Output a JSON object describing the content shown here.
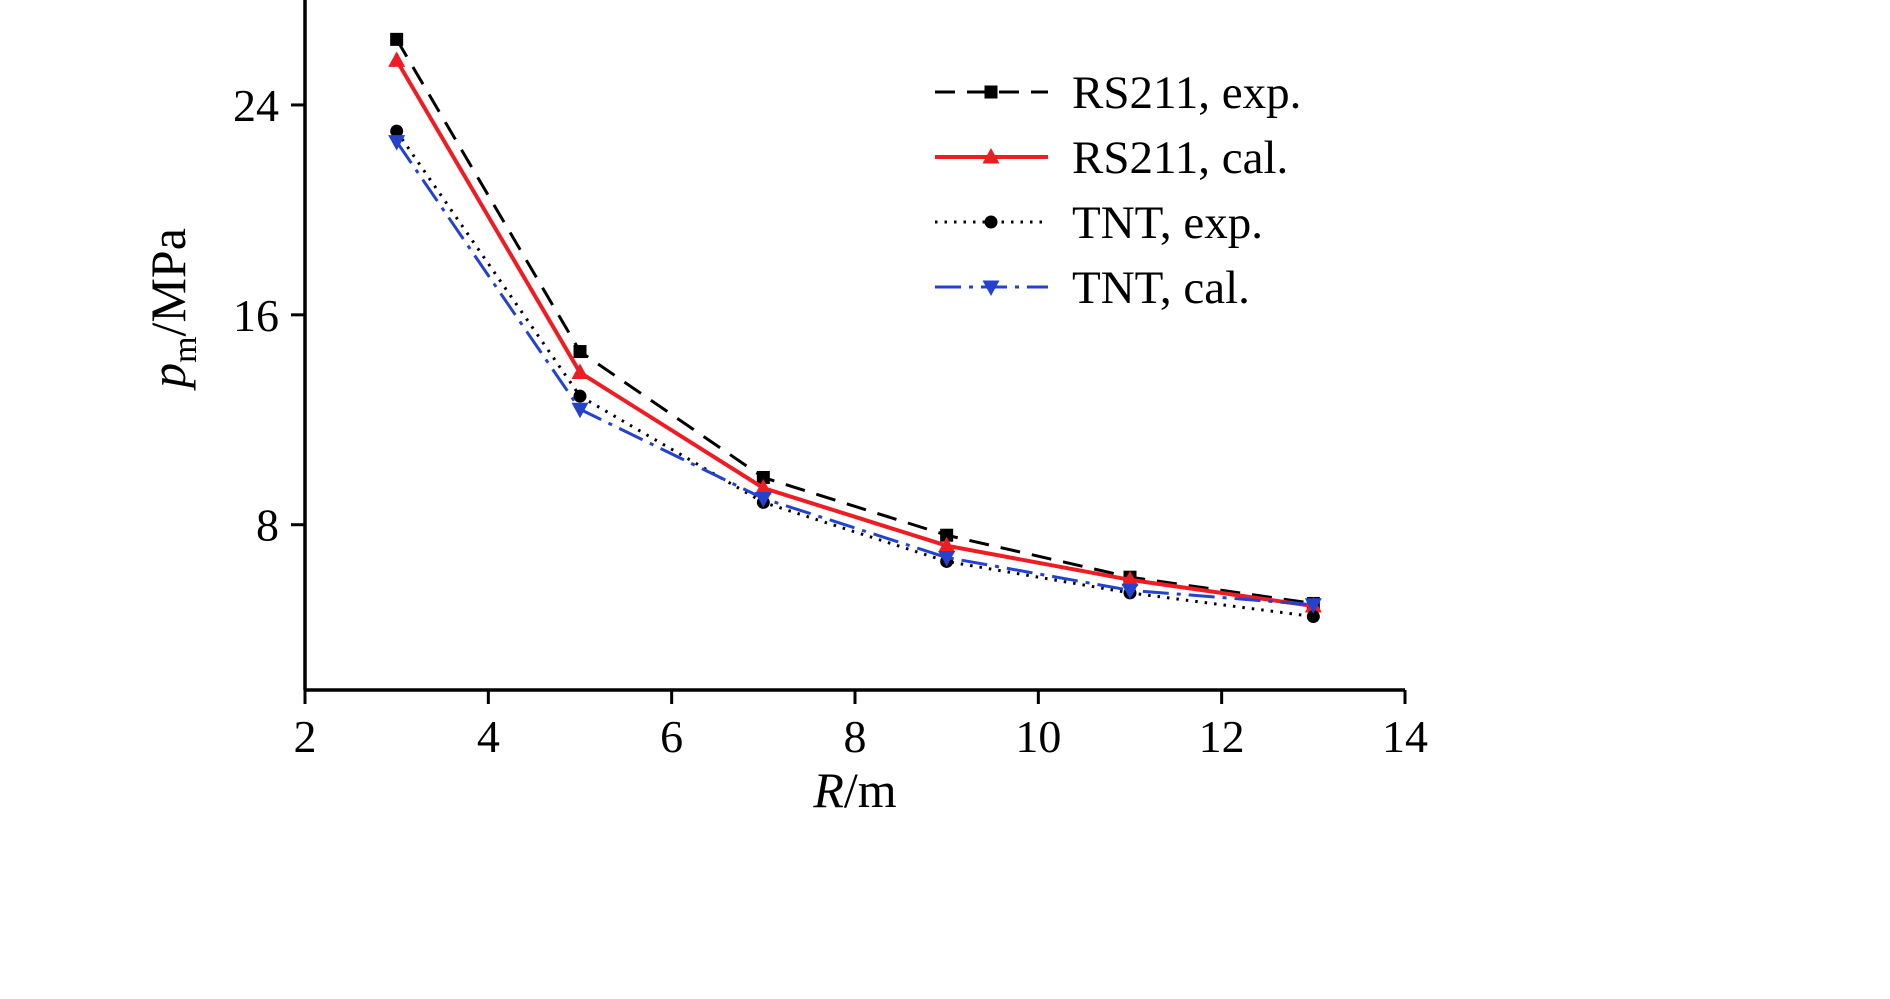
{
  "chart_data": {
    "type": "line",
    "title": "",
    "xlabel_symbol": "R",
    "xlabel_unit": "/m",
    "ylabel_symbol": "p",
    "ylabel_subscript": "m",
    "ylabel_unit": "/MPa",
    "xlim": [
      2,
      14
    ],
    "ylim": [
      1.7,
      28.0
    ],
    "x_ticks": [
      2,
      4,
      6,
      8,
      10,
      12,
      14
    ],
    "y_ticks": [
      8,
      16,
      24
    ],
    "grid": false,
    "legend_position": "upper-right-inside",
    "x": [
      3,
      5,
      7,
      9,
      11,
      13
    ],
    "series": [
      {
        "name": "RS211, exp.",
        "values": [
          26.5,
          14.6,
          9.8,
          7.6,
          6.0,
          5.0
        ],
        "color": "#000000",
        "line_style": "dashed",
        "marker": "square"
      },
      {
        "name": "RS211, cal.",
        "values": [
          25.7,
          13.8,
          9.4,
          7.2,
          5.9,
          4.9
        ],
        "color": "#ee1c23",
        "line_style": "solid",
        "marker": "triangle-up"
      },
      {
        "name": "TNT, exp.",
        "values": [
          23.0,
          12.9,
          8.85,
          6.6,
          5.4,
          4.5
        ],
        "color": "#000000",
        "line_style": "dotted",
        "marker": "circle"
      },
      {
        "name": "TNT, cal.",
        "values": [
          22.6,
          12.4,
          9.0,
          6.75,
          5.5,
          4.95
        ],
        "color": "#2442cd",
        "line_style": "dash-dot",
        "marker": "triangle-down"
      }
    ]
  }
}
